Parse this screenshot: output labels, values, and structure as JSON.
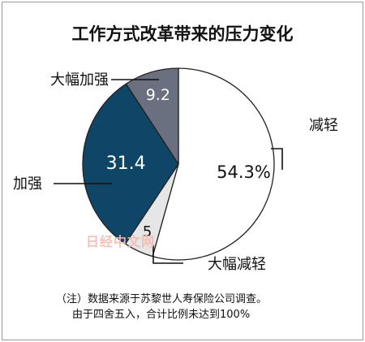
{
  "chart_data": {
    "type": "pie",
    "title": "工作方式改革带来的压力变化",
    "slices": [
      {
        "label": "减轻",
        "value": 54.3,
        "value_text": "54.3%",
        "color": "#ffffff",
        "text_color": "#111111"
      },
      {
        "label": "大幅减轻",
        "value": 5,
        "value_text": "5",
        "color": "#e6e6e6",
        "text_color": "#111111"
      },
      {
        "label": "加强",
        "value": 31.4,
        "value_text": "31.4",
        "color": "#0f4566",
        "text_color": "#ffffff"
      },
      {
        "label": "大幅加强",
        "value": 9.2,
        "value_text": "9.2",
        "color": "#6a7080",
        "text_color": "#ffffff"
      }
    ],
    "start_angle_deg": 0,
    "direction": "clockwise",
    "legend": "callouts"
  },
  "notes": [
    "（注）数据来源于苏黎世人寿保险公司调查。",
    "由于四舍五入，合计比例未达到100%"
  ],
  "watermark": "日经中文网"
}
